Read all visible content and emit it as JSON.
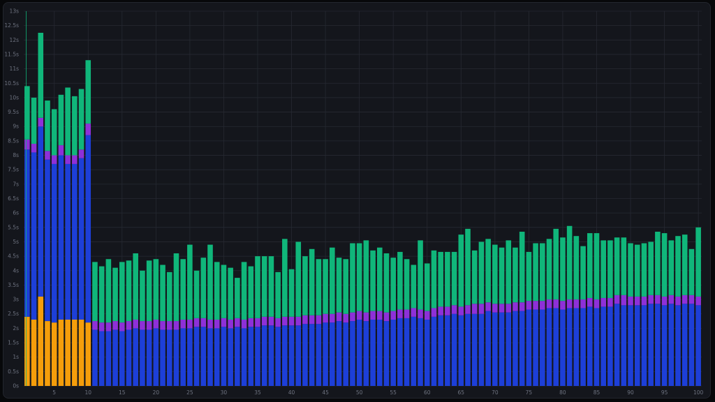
{
  "chart_data": {
    "type": "bar",
    "stacked": true,
    "title": "",
    "xlabel": "",
    "ylabel": "",
    "ylim": [
      0,
      13
    ],
    "y_ticks": [
      "0s",
      "0.5s",
      "1s",
      "1.5s",
      "2s",
      "2.5s",
      "3s",
      "3.5s",
      "4s",
      "4.5s",
      "5s",
      "5.5s",
      "6s",
      "6.5s",
      "7s",
      "7.5s",
      "8s",
      "8.5s",
      "9s",
      "9.5s",
      "10s",
      "10.5s",
      "11s",
      "11.5s",
      "12s",
      "12.5s",
      "13s"
    ],
    "x_tick_labels": [
      "5",
      "10",
      "15",
      "20",
      "25",
      "30",
      "35",
      "40",
      "45",
      "50",
      "55",
      "60",
      "65",
      "70",
      "75",
      "80",
      "85",
      "90",
      "95",
      "100"
    ],
    "x_tick_values": [
      5,
      10,
      15,
      20,
      25,
      30,
      35,
      40,
      45,
      50,
      55,
      60,
      65,
      70,
      75,
      80,
      85,
      90,
      95,
      100
    ],
    "grid": true,
    "legend": "none",
    "x": [
      1,
      2,
      3,
      4,
      5,
      6,
      7,
      8,
      9,
      10,
      11,
      12,
      13,
      14,
      15,
      16,
      17,
      18,
      19,
      20,
      21,
      22,
      23,
      24,
      25,
      26,
      27,
      28,
      29,
      30,
      31,
      32,
      33,
      34,
      35,
      36,
      37,
      38,
      39,
      40,
      41,
      42,
      43,
      44,
      45,
      46,
      47,
      48,
      49,
      50,
      51,
      52,
      53,
      54,
      55,
      56,
      57,
      58,
      59,
      60,
      61,
      62,
      63,
      64,
      65,
      66,
      67,
      68,
      69,
      70,
      71,
      72,
      73,
      74,
      75,
      76,
      77,
      78,
      79,
      80,
      81,
      82,
      83,
      84,
      85,
      86,
      87,
      88,
      89,
      90,
      91,
      92,
      93,
      94,
      95,
      96,
      97,
      98,
      99,
      100
    ],
    "series": [
      {
        "color": "#f59e0b",
        "values": [
          2.4,
          2.3,
          3.1,
          2.25,
          2.2,
          2.3,
          2.3,
          2.3,
          2.3,
          2.2,
          0,
          0,
          0,
          0,
          0,
          0,
          0,
          0,
          0,
          0,
          0,
          0,
          0,
          0,
          0,
          0,
          0,
          0,
          0,
          0,
          0,
          0,
          0,
          0,
          0,
          0,
          0,
          0,
          0,
          0,
          0,
          0,
          0,
          0,
          0,
          0,
          0,
          0,
          0,
          0,
          0,
          0,
          0,
          0,
          0,
          0,
          0,
          0,
          0,
          0,
          0,
          0,
          0,
          0,
          0,
          0,
          0,
          0,
          0,
          0,
          0,
          0,
          0,
          0,
          0,
          0,
          0,
          0,
          0,
          0,
          0,
          0,
          0,
          0,
          0,
          0,
          0,
          0,
          0,
          0,
          0,
          0,
          0,
          0,
          0,
          0,
          0,
          0,
          0,
          0
        ]
      },
      {
        "color": "#1d3fd8",
        "values": [
          5.8,
          5.8,
          5.9,
          5.6,
          5.5,
          5.7,
          5.4,
          5.4,
          5.6,
          6.5,
          1.95,
          1.9,
          1.9,
          1.95,
          1.9,
          1.95,
          2.0,
          1.95,
          1.95,
          2.0,
          1.95,
          1.95,
          1.95,
          2.0,
          2.0,
          2.05,
          2.05,
          2.0,
          2.0,
          2.05,
          2.0,
          2.05,
          2.0,
          2.05,
          2.05,
          2.1,
          2.1,
          2.05,
          2.1,
          2.1,
          2.1,
          2.15,
          2.15,
          2.15,
          2.2,
          2.2,
          2.25,
          2.2,
          2.25,
          2.3,
          2.25,
          2.3,
          2.3,
          2.25,
          2.3,
          2.35,
          2.35,
          2.4,
          2.35,
          2.3,
          2.4,
          2.45,
          2.45,
          2.5,
          2.45,
          2.5,
          2.5,
          2.5,
          2.6,
          2.55,
          2.55,
          2.55,
          2.6,
          2.6,
          2.65,
          2.65,
          2.65,
          2.7,
          2.7,
          2.65,
          2.7,
          2.7,
          2.7,
          2.75,
          2.7,
          2.75,
          2.75,
          2.85,
          2.8,
          2.8,
          2.8,
          2.8,
          2.85,
          2.85,
          2.8,
          2.85,
          2.8,
          2.85,
          2.85,
          2.8
        ]
      },
      {
        "color": "#8e30d8",
        "values": [
          0.35,
          0.3,
          0.3,
          0.3,
          0.3,
          0.35,
          0.3,
          0.3,
          0.3,
          0.4,
          0.3,
          0.3,
          0.3,
          0.3,
          0.3,
          0.3,
          0.3,
          0.3,
          0.3,
          0.3,
          0.3,
          0.3,
          0.3,
          0.3,
          0.3,
          0.3,
          0.3,
          0.3,
          0.3,
          0.3,
          0.3,
          0.3,
          0.3,
          0.3,
          0.3,
          0.3,
          0.3,
          0.3,
          0.3,
          0.3,
          0.3,
          0.3,
          0.3,
          0.3,
          0.3,
          0.3,
          0.3,
          0.3,
          0.3,
          0.3,
          0.3,
          0.3,
          0.3,
          0.3,
          0.3,
          0.3,
          0.3,
          0.3,
          0.3,
          0.3,
          0.3,
          0.3,
          0.3,
          0.3,
          0.3,
          0.3,
          0.35,
          0.35,
          0.3,
          0.3,
          0.3,
          0.3,
          0.3,
          0.3,
          0.3,
          0.3,
          0.3,
          0.3,
          0.3,
          0.3,
          0.3,
          0.3,
          0.3,
          0.3,
          0.3,
          0.3,
          0.3,
          0.3,
          0.35,
          0.3,
          0.3,
          0.3,
          0.3,
          0.3,
          0.3,
          0.3,
          0.3,
          0.3,
          0.3,
          0.3
        ]
      },
      {
        "color": "#10b67a",
        "values": [
          1.85,
          1.6,
          2.95,
          1.75,
          1.6,
          1.75,
          2.35,
          2.05,
          2.1,
          2.2,
          2.05,
          1.95,
          2.2,
          1.85,
          2.1,
          2.1,
          2.3,
          1.75,
          2.1,
          2.1,
          1.95,
          1.7,
          2.35,
          2.1,
          2.6,
          1.65,
          2.1,
          2.6,
          2.0,
          1.85,
          1.8,
          1.4,
          2.0,
          1.8,
          2.15,
          2.1,
          2.1,
          1.6,
          2.7,
          1.65,
          2.6,
          2.05,
          2.3,
          1.95,
          1.9,
          2.3,
          1.9,
          1.9,
          2.4,
          2.35,
          2.5,
          2.1,
          2.2,
          2.05,
          1.85,
          2.0,
          1.75,
          1.5,
          2.4,
          1.65,
          2.0,
          1.9,
          1.9,
          1.85,
          2.5,
          2.65,
          1.85,
          2.15,
          2.2,
          2.05,
          1.95,
          2.2,
          1.9,
          2.45,
          1.7,
          2.0,
          2.0,
          2.1,
          2.45,
          2.2,
          2.55,
          2.2,
          1.85,
          2.25,
          2.3,
          2.0,
          2.0,
          2.0,
          2.0,
          1.85,
          1.8,
          1.85,
          1.85,
          2.2,
          2.2,
          1.9,
          2.1,
          2.1,
          1.6,
          2.4
        ]
      }
    ]
  }
}
